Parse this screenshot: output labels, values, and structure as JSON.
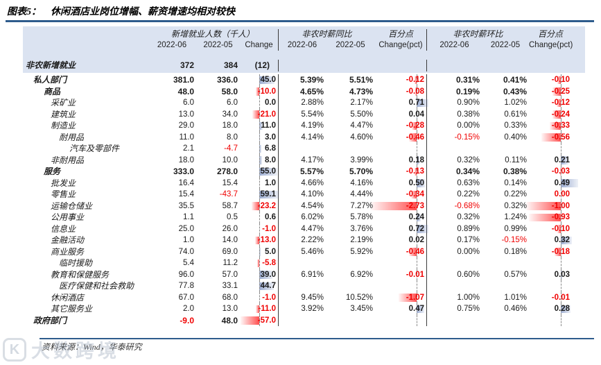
{
  "title": {
    "tag": "图表5：",
    "text": "休闲酒店业岗位增幅、薪资增速均相对较快"
  },
  "footer": {
    "source": "资料来源：Wind，华泰研究"
  },
  "watermark": {
    "logo": "K",
    "text": "大数跨境"
  },
  "colors": {
    "accent_rule": "#2e5c8c",
    "header_bg": "#dbe3f1",
    "negative_text": "#f00000",
    "positive_bar": "#5874b2",
    "negative_bar": "#ff2d2d"
  },
  "chart_data": {
    "type": "table",
    "title": "图表5： 休闲酒店业岗位增幅、薪资增速均相对较快",
    "group_headers": {
      "jobs_group": "新增就业人数（千人）",
      "yoy_group": "非农时薪同比",
      "yoy_pct": "百分点",
      "mom_group": "非农时薪环比",
      "mom_pct": "百分点"
    },
    "columns": [
      "2022-06",
      "2022-05",
      "Change",
      "2022-06",
      "2022-05",
      "Change(pct)",
      "2022-06",
      "2022-05",
      "Change(pct)"
    ],
    "summary": {
      "label": "非农新增就业",
      "j06": "372",
      "j05": "384",
      "jc": "(12)"
    },
    "rows": [
      {
        "label": "私人部门",
        "indent": 1,
        "bold": true,
        "j06": "381.0",
        "j05": "336.0",
        "jc": {
          "t": "45.0",
          "v": 45
        },
        "y06": "5.39%",
        "y05": "5.51%",
        "yc": {
          "t": "-0.12",
          "v": -0.12
        },
        "m06": "0.31%",
        "m05": "0.41%",
        "mc": {
          "t": "-0.10",
          "v": -0.1
        }
      },
      {
        "label": "商品",
        "indent": 2,
        "bold": true,
        "j06": "48.0",
        "j05": "58.0",
        "jc": {
          "t": "-10.0",
          "v": -10
        },
        "y06": "4.65%",
        "y05": "4.73%",
        "yc": {
          "t": "-0.08",
          "v": -0.08
        },
        "m06": "0.19%",
        "m05": "0.43%",
        "mc": {
          "t": "-0.25",
          "v": -0.25
        }
      },
      {
        "label": "采矿业",
        "indent": 3,
        "bold": false,
        "j06": "6.0",
        "j05": "6.0",
        "jc": {
          "t": "0.0",
          "v": 0
        },
        "y06": "2.88%",
        "y05": "2.17%",
        "yc": {
          "t": "0.71",
          "v": 0.71
        },
        "m06": "0.90%",
        "m05": "1.02%",
        "mc": {
          "t": "-0.12",
          "v": -0.12
        }
      },
      {
        "label": "建筑业",
        "indent": 3,
        "bold": false,
        "j06": "13.0",
        "j05": "34.0",
        "jc": {
          "t": "-21.0",
          "v": -21
        },
        "y06": "5.54%",
        "y05": "5.50%",
        "yc": {
          "t": "0.04",
          "v": 0.04
        },
        "m06": "0.38%",
        "m05": "0.61%",
        "mc": {
          "t": "-0.24",
          "v": -0.24
        }
      },
      {
        "label": "制造业",
        "indent": 3,
        "bold": false,
        "j06": "29.0",
        "j05": "18.0",
        "jc": {
          "t": "11.0",
          "v": 11
        },
        "y06": "4.19%",
        "y05": "4.47%",
        "yc": {
          "t": "-0.28",
          "v": -0.28
        },
        "m06": "0.00%",
        "m05": "0.33%",
        "mc": {
          "t": "-0.33",
          "v": -0.33
        }
      },
      {
        "label": "耐用品",
        "indent": 4,
        "bold": false,
        "j06": "11.0",
        "j05": "8.0",
        "jc": {
          "t": "3.0",
          "v": 3
        },
        "y06": "4.14%",
        "y05": "4.60%",
        "yc": {
          "t": "-0.46",
          "v": -0.46
        },
        "m06": "-0.15%",
        "m05": "0.40%",
        "mc": {
          "t": "-0.56",
          "v": -0.56
        }
      },
      {
        "label": "汽车及零部件",
        "indent": 5,
        "bold": false,
        "j06": "2.1",
        "j05": "-4.7",
        "jc": {
          "t": "6.8",
          "v": 6.8
        },
        "y06": "",
        "y05": "",
        "yc": null,
        "m06": "",
        "m05": "",
        "mc": null
      },
      {
        "label": "非耐用品",
        "indent": 3,
        "bold": false,
        "j06": "18.0",
        "j05": "10.0",
        "jc": {
          "t": "8.0",
          "v": 8
        },
        "y06": "4.17%",
        "y05": "3.99%",
        "yc": {
          "t": "0.18",
          "v": 0.18
        },
        "m06": "0.32%",
        "m05": "0.11%",
        "mc": {
          "t": "0.21",
          "v": 0.21
        }
      },
      {
        "label": "服务",
        "indent": 2,
        "bold": true,
        "j06": "333.0",
        "j05": "278.0",
        "jc": {
          "t": "55.0",
          "v": 55
        },
        "y06": "5.57%",
        "y05": "5.70%",
        "yc": {
          "t": "-0.13",
          "v": -0.13
        },
        "m06": "0.34%",
        "m05": "0.38%",
        "mc": {
          "t": "-0.03",
          "v": -0.03
        }
      },
      {
        "label": "批发业",
        "indent": 3,
        "bold": false,
        "j06": "16.4",
        "j05": "15.4",
        "jc": {
          "t": "1.0",
          "v": 1
        },
        "y06": "4.66%",
        "y05": "4.16%",
        "yc": {
          "t": "0.50",
          "v": 0.5
        },
        "m06": "0.63%",
        "m05": "0.14%",
        "mc": {
          "t": "0.49",
          "v": 0.49
        }
      },
      {
        "label": "零售业",
        "indent": 3,
        "bold": false,
        "j06": "15.4",
        "j05": "-43.7",
        "jc": {
          "t": "59.1",
          "v": 59.1
        },
        "y06": "4.10%",
        "y05": "4.44%",
        "yc": {
          "t": "-0.34",
          "v": -0.34
        },
        "m06": "0.22%",
        "m05": "0.22%",
        "mc": {
          "t": "0.00",
          "v": -0.001
        }
      },
      {
        "label": "运输仓储业",
        "indent": 3,
        "bold": false,
        "j06": "35.5",
        "j05": "58.7",
        "jc": {
          "t": "-23.2",
          "v": -23.2
        },
        "y06": "4.54%",
        "y05": "7.27%",
        "yc": {
          "t": "-2.73",
          "v": -2.73
        },
        "m06": "-0.68%",
        "m05": "0.32%",
        "mc": {
          "t": "-1.00",
          "v": -1.0
        }
      },
      {
        "label": "公用事业",
        "indent": 3,
        "bold": false,
        "j06": "1.1",
        "j05": "0.5",
        "jc": {
          "t": "0.6",
          "v": 0.6
        },
        "y06": "6.02%",
        "y05": "5.78%",
        "yc": {
          "t": "0.24",
          "v": 0.24
        },
        "m06": "0.32%",
        "m05": "1.24%",
        "mc": {
          "t": "-0.93",
          "v": -0.93
        }
      },
      {
        "label": "信息业",
        "indent": 3,
        "bold": false,
        "j06": "25.0",
        "j05": "26.0",
        "jc": {
          "t": "-1.0",
          "v": -1
        },
        "y06": "4.47%",
        "y05": "3.76%",
        "yc": {
          "t": "0.72",
          "v": 0.72
        },
        "m06": "0.89%",
        "m05": "0.99%",
        "mc": {
          "t": "-0.10",
          "v": -0.1
        }
      },
      {
        "label": "金融活动",
        "indent": 3,
        "bold": false,
        "j06": "1.0",
        "j05": "14.0",
        "jc": {
          "t": "-13.0",
          "v": -13
        },
        "y06": "2.22%",
        "y05": "2.19%",
        "yc": {
          "t": "0.02",
          "v": 0.02
        },
        "m06": "0.17%",
        "m05": "-0.15%",
        "mc": {
          "t": "0.32",
          "v": 0.32
        }
      },
      {
        "label": "商业服务",
        "indent": 3,
        "bold": false,
        "j06": "74.0",
        "j05": "69.0",
        "jc": {
          "t": "5.0",
          "v": 5
        },
        "y06": "5.46%",
        "y05": "5.92%",
        "yc": {
          "t": "-0.46",
          "v": -0.46
        },
        "m06": "0.00%",
        "m05": "0.18%",
        "mc": {
          "t": "-0.18",
          "v": -0.18
        }
      },
      {
        "label": "临时援助",
        "indent": 4,
        "bold": false,
        "j06": "5.4",
        "j05": "11.2",
        "jc": {
          "t": "-5.8",
          "v": -5.8
        },
        "y06": "",
        "y05": "",
        "yc": null,
        "m06": "",
        "m05": "",
        "mc": null
      },
      {
        "label": "教育和保健服务",
        "indent": 3,
        "bold": false,
        "j06": "96.0",
        "j05": "57.0",
        "jc": {
          "t": "39.0",
          "v": 39
        },
        "y06": "6.91%",
        "y05": "6.92%",
        "yc": {
          "t": "-0.01",
          "v": -0.01
        },
        "m06": "0.60%",
        "m05": "0.57%",
        "mc": {
          "t": "0.03",
          "v": 0.03
        }
      },
      {
        "label": "医疗保健和社会救助",
        "indent": 4,
        "bold": false,
        "j06": "77.8",
        "j05": "33.1",
        "jc": {
          "t": "44.7",
          "v": 44.7
        },
        "y06": "",
        "y05": "",
        "yc": null,
        "m06": "",
        "m05": "",
        "mc": null
      },
      {
        "label": "休闲酒店",
        "indent": 3,
        "bold": false,
        "j06": "67.0",
        "j05": "68.0",
        "jc": {
          "t": "-1.0",
          "v": -1
        },
        "y06": "9.45%",
        "y05": "10.52%",
        "yc": {
          "t": "-1.07",
          "v": -1.07
        },
        "m06": "1.00%",
        "m05": "1.01%",
        "mc": {
          "t": "-0.01",
          "v": -0.01
        }
      },
      {
        "label": "其它服务业",
        "indent": 3,
        "bold": false,
        "j06": "2.0",
        "j05": "13.0",
        "jc": {
          "t": "-11.0",
          "v": -11
        },
        "y06": "3.92%",
        "y05": "3.45%",
        "yc": {
          "t": "0.47",
          "v": 0.47
        },
        "m06": "0.75%",
        "m05": "0.46%",
        "mc": {
          "t": "0.28",
          "v": 0.28
        }
      },
      {
        "label": "政府部门",
        "indent": 1,
        "bold": true,
        "j06": "-9.0",
        "j05": "48.0",
        "jc": {
          "t": "-57.0",
          "v": -57
        },
        "y06": "",
        "y05": "",
        "yc": null,
        "m06": "",
        "m05": "",
        "mc": null
      }
    ]
  }
}
